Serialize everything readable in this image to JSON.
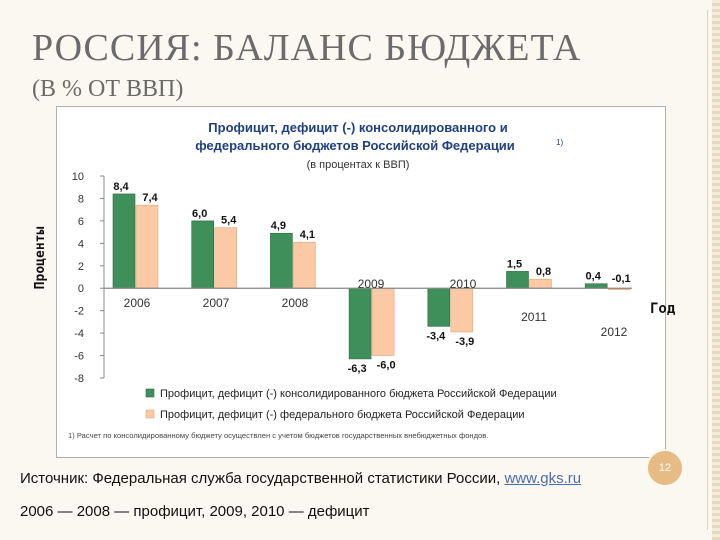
{
  "slide": {
    "title": "РОССИЯ: БАЛАНС БЮДЖЕТА",
    "subtitle": "(В % ОТ ВВП)",
    "source_text": "Источник: Федеральная служба государственной статистики России, ",
    "source_link": "www.gks.ru",
    "note": "2006 — 2008 — профицит, 2009, 2010  — дефицит",
    "page_number": "12"
  },
  "chart_data": {
    "type": "bar",
    "title_lines": [
      "Профицит, дефицит (-) консолидированного и",
      "федерального бюджетов Российской Федерации"
    ],
    "title_superscript": "1)",
    "subtitle": "(в процентах к ВВП)",
    "ylabel": "Проценты",
    "xlabel": "Год",
    "ylim": [
      -8,
      10
    ],
    "yticks": [
      10,
      8,
      6,
      4,
      2,
      0,
      -2,
      -4,
      -6,
      -8
    ],
    "categories": [
      "2006",
      "2007",
      "2008",
      "2009",
      "2010",
      "2011",
      "2012"
    ],
    "series": [
      {
        "name": "Профицит, дефицит (-) консолидированного бюджета Российской Федерации",
        "color": "#3e8f59",
        "values": [
          8.4,
          6.0,
          4.9,
          -6.3,
          -3.4,
          1.5,
          0.4
        ],
        "labels": [
          "8,4",
          "6,0",
          "4,9",
          "-6,3",
          "-3,4",
          "1,5",
          "0,4"
        ]
      },
      {
        "name": "Профицит, дефицит (-) федерального бюджета Российской Федерации",
        "color": "#fbc9a4",
        "values": [
          7.4,
          5.4,
          4.1,
          -6.0,
          -3.9,
          0.8,
          -0.1
        ],
        "labels": [
          "7,4",
          "5,4",
          "4,1",
          "-6,0",
          "-3,9",
          "0,8",
          "-0,1"
        ]
      }
    ],
    "footnote": "1) Расчет по консолидированному бюджету осуществлен с учетом бюджетов государственных внебюджетных фондов.",
    "grid": false,
    "legend": "bottom"
  }
}
